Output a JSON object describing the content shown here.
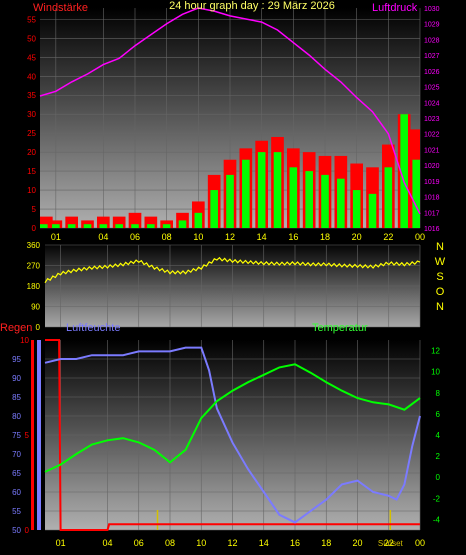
{
  "title": "24 hour graph day : 29 März 2026",
  "colors": {
    "background": "#000000",
    "wind": "#ff0000",
    "gust": "#00ff00",
    "pressure": "#ff00ff",
    "direction": "#ffff00",
    "rain": "#ff0000",
    "humidity": "#7b7bff",
    "temperature": "#00ff00",
    "axis_text": "#ffff66",
    "compass_text": "#ffff00",
    "tick_text": "#ffff00",
    "plot_dark": "#000000",
    "plot_light": "#9a9a9a"
  },
  "chart_data": [
    {
      "type": "bar",
      "name": "wind",
      "ylabel_left": "Windstärke",
      "ylabel_right": "Luftdruck",
      "yticks_left": [
        "0",
        "5",
        "10",
        "15",
        "20",
        "25",
        "30",
        "35",
        "40",
        "45",
        "50",
        "55"
      ],
      "yticks_right": [
        "1016",
        "1017",
        "1018",
        "1019",
        "1020",
        "1021",
        "1022",
        "1023",
        "1024",
        "1025",
        "1026",
        "1027",
        "1028",
        "1029",
        "1030"
      ],
      "ylim_left": [
        0,
        58
      ],
      "ylim_right": [
        1016,
        1030
      ],
      "xticks": [
        "01",
        "04",
        "06",
        "08",
        "10",
        "12",
        "14",
        "16",
        "18",
        "20",
        "22",
        "00"
      ],
      "xlim_hours": [
        0,
        24
      ],
      "grid": true,
      "series": [
        {
          "name": "Luftdruck",
          "x": [
            0,
            1,
            2,
            3,
            4,
            5,
            6,
            7,
            8,
            9,
            10,
            11,
            12,
            13,
            14,
            15,
            16,
            17,
            18,
            19,
            20,
            21,
            22,
            23,
            24
          ],
          "values": [
            1024.4,
            1024.7,
            1025.3,
            1025.8,
            1026.4,
            1026.8,
            1027.6,
            1028.3,
            1029.0,
            1029.6,
            1030.0,
            1029.8,
            1029.5,
            1029.3,
            1029.1,
            1028.6,
            1027.8,
            1027.0,
            1026.1,
            1025.3,
            1024.3,
            1023.4,
            1022.0,
            1018.9,
            1016.9
          ]
        },
        {
          "name": "Windstärke",
          "x": [
            0,
            1,
            2,
            3,
            4,
            5,
            6,
            7,
            8,
            9,
            10,
            11,
            12,
            13,
            14,
            15,
            16,
            17,
            18,
            19,
            20,
            21,
            22,
            23,
            24
          ],
          "values": [
            3,
            2,
            3,
            2,
            3,
            3,
            4,
            3,
            2,
            4,
            7,
            14,
            18,
            21,
            23,
            24,
            21,
            20,
            19,
            19,
            17,
            16,
            22,
            30,
            26
          ]
        },
        {
          "name": "Böen",
          "x": [
            0,
            1,
            2,
            3,
            4,
            5,
            6,
            7,
            8,
            9,
            10,
            11,
            12,
            13,
            14,
            15,
            16,
            17,
            18,
            19,
            20,
            21,
            22,
            23,
            24
          ],
          "values": [
            1,
            1,
            1,
            1,
            1,
            1,
            1,
            1,
            1,
            2,
            4,
            10,
            14,
            18,
            20,
            20,
            16,
            15,
            14,
            13,
            10,
            9,
            16,
            30,
            18
          ]
        }
      ]
    },
    {
      "type": "line",
      "name": "direction",
      "yticks": [
        "0",
        "90",
        "180",
        "270",
        "360"
      ],
      "compass": [
        "N",
        "W",
        "S",
        "O",
        "N"
      ],
      "ylim": [
        0,
        360
      ],
      "xlim_hours": [
        0,
        24
      ],
      "series": [
        {
          "name": "Windrichtung",
          "x": [
            0,
            1,
            2,
            3,
            4,
            5,
            6,
            7,
            8,
            9,
            10,
            11,
            12,
            13,
            14,
            15,
            16,
            17,
            18,
            19,
            20,
            21,
            22,
            23,
            24
          ],
          "values": [
            200,
            235,
            250,
            260,
            265,
            275,
            290,
            260,
            240,
            240,
            260,
            300,
            290,
            285,
            280,
            278,
            280,
            275,
            275,
            270,
            268,
            265,
            280,
            275,
            285
          ]
        }
      ]
    },
    {
      "type": "line",
      "name": "humidity-temperature",
      "ylabel_left": "Regen",
      "ylabel_mid": "Luftfeuchte",
      "ylabel_right": "Temperatur",
      "yticks_humidity": [
        "50",
        "55",
        "60",
        "65",
        "70",
        "75",
        "80",
        "85",
        "90",
        "95"
      ],
      "yticks_rain": [
        "0",
        "5",
        "10"
      ],
      "yticks_temp": [
        "-4",
        "-2",
        "0",
        "2",
        "4",
        "6",
        "8",
        "10",
        "12"
      ],
      "ylim_humidity": [
        50,
        100
      ],
      "ylim_rain": [
        0,
        10
      ],
      "ylim_temp": [
        -5,
        13
      ],
      "xticks": [
        "01",
        "04",
        "06",
        "08",
        "10",
        "12",
        "14",
        "16",
        "18",
        "20",
        "22",
        "00"
      ],
      "markers": [
        "Sunrise",
        "Sunset"
      ],
      "xlim_hours": [
        0,
        24
      ],
      "series": [
        {
          "name": "Luftfeuchte",
          "x": [
            0,
            1,
            2,
            3,
            4,
            5,
            6,
            7,
            8,
            9,
            9.5,
            10,
            10.5,
            11,
            12,
            13,
            14,
            15,
            16,
            17,
            18,
            19,
            20,
            21,
            22,
            22.5,
            23,
            23.5,
            24
          ],
          "values": [
            94,
            95,
            95,
            96,
            96,
            96,
            97,
            97,
            97,
            98,
            98,
            98,
            92,
            82,
            73,
            66,
            60,
            54,
            52,
            55,
            58,
            62,
            63,
            60,
            59,
            58,
            62,
            72,
            80
          ]
        },
        {
          "name": "Temperatur",
          "x": [
            0,
            1,
            2,
            3,
            4,
            5,
            6,
            7,
            8,
            9,
            10,
            11,
            12,
            13,
            14,
            15,
            16,
            17,
            18,
            19,
            20,
            21,
            22,
            23,
            24
          ],
          "values": [
            0.5,
            1.2,
            2.2,
            3.1,
            3.5,
            3.7,
            3.3,
            2.6,
            1.4,
            2.6,
            5.6,
            7.2,
            8.2,
            9.0,
            9.7,
            10.4,
            10.7,
            9.9,
            9.0,
            8.2,
            7.5,
            7.1,
            6.9,
            6.4,
            7.5
          ]
        },
        {
          "name": "Regen",
          "x": [
            0,
            0.9,
            1,
            4,
            4.1,
            24
          ],
          "values": [
            10,
            10,
            0,
            0,
            0.3,
            0.3
          ]
        }
      ]
    }
  ]
}
